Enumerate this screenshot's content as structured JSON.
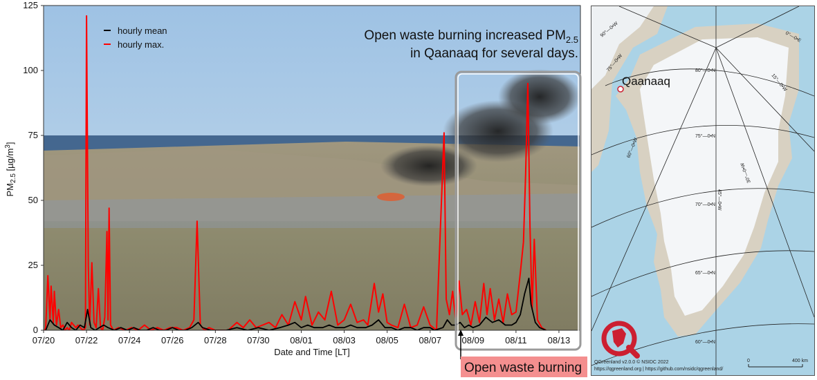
{
  "chart_data": {
    "type": "line",
    "title_line1_prefix": "Open waste burning increased PM",
    "title_line1_sub": "2.5",
    "title_line2": "in Qaanaaq  for several days.",
    "ylabel_prefix": "PM",
    "ylabel_sub": "2.5",
    "ylabel_unit": " [µg/m",
    "ylabel_sup": "3",
    "ylabel_close": "]",
    "xlabel": "Date and Time [LT]",
    "ylim": [
      0,
      125
    ],
    "xlim": [
      "07/20",
      "08/14"
    ],
    "yticks": [
      0,
      25,
      50,
      75,
      100,
      125
    ],
    "xtick_labels": [
      "07/20",
      "07/22",
      "07/24",
      "07/26",
      "07/28",
      "07/30",
      "08/01",
      "08/03",
      "08/05",
      "08/07",
      "08/09",
      "08/11",
      "08/13"
    ],
    "legend_position": "top-left",
    "series": [
      {
        "name": "hourly mean",
        "color": "#000000",
        "points": [
          [
            0.1,
            0
          ],
          [
            0.3,
            4
          ],
          [
            0.5,
            2
          ],
          [
            0.7,
            1
          ],
          [
            0.9,
            0
          ],
          [
            1.1,
            3
          ],
          [
            1.3,
            1
          ],
          [
            1.5,
            0
          ],
          [
            1.7,
            2
          ],
          [
            1.9,
            1
          ],
          [
            2.05,
            8
          ],
          [
            2.2,
            1
          ],
          [
            2.4,
            0
          ],
          [
            2.6,
            1
          ],
          [
            2.8,
            2
          ],
          [
            3.0,
            1
          ],
          [
            3.3,
            0
          ],
          [
            3.6,
            1
          ],
          [
            3.9,
            0
          ],
          [
            4.2,
            1
          ],
          [
            4.5,
            0
          ],
          [
            4.8,
            0
          ],
          [
            5.1,
            1
          ],
          [
            5.4,
            0
          ],
          [
            5.7,
            0
          ],
          [
            6.0,
            1
          ],
          [
            6.3,
            0
          ],
          [
            6.6,
            0
          ],
          [
            6.9,
            1
          ],
          [
            7.2,
            3
          ],
          [
            7.4,
            1
          ],
          [
            7.8,
            0
          ],
          [
            8.5,
            0
          ],
          [
            9.0,
            1
          ],
          [
            9.5,
            0
          ],
          [
            10.0,
            1
          ],
          [
            10.5,
            0
          ],
          [
            11.0,
            1
          ],
          [
            11.4,
            2
          ],
          [
            11.7,
            3
          ],
          [
            12.0,
            1
          ],
          [
            12.3,
            2
          ],
          [
            12.6,
            1
          ],
          [
            13.0,
            1
          ],
          [
            13.3,
            2
          ],
          [
            13.6,
            1
          ],
          [
            14.0,
            1
          ],
          [
            14.3,
            2
          ],
          [
            14.6,
            1
          ],
          [
            15.0,
            1
          ],
          [
            15.3,
            2
          ],
          [
            15.6,
            4
          ],
          [
            15.9,
            1
          ],
          [
            16.2,
            1
          ],
          [
            16.5,
            0
          ],
          [
            16.8,
            1
          ],
          [
            17.1,
            1
          ],
          [
            17.4,
            0
          ],
          [
            17.7,
            1
          ],
          [
            18.0,
            1
          ],
          [
            18.2,
            0
          ],
          [
            18.6,
            1
          ],
          [
            18.8,
            4
          ],
          [
            19.0,
            2
          ],
          [
            19.2,
            2
          ],
          [
            19.4,
            3
          ],
          [
            19.6,
            1
          ],
          [
            19.8,
            2
          ],
          [
            20.0,
            1
          ],
          [
            20.3,
            2
          ],
          [
            20.6,
            5
          ],
          [
            20.9,
            3
          ],
          [
            21.2,
            4
          ],
          [
            21.5,
            2
          ],
          [
            21.8,
            2
          ],
          [
            22.0,
            3
          ],
          [
            22.2,
            6
          ],
          [
            22.4,
            14
          ],
          [
            22.6,
            20
          ],
          [
            22.7,
            10
          ],
          [
            22.9,
            3
          ],
          [
            23.1,
            1
          ],
          [
            23.4,
            0
          ]
        ]
      },
      {
        "name": "hourly max.",
        "color": "#ff0000",
        "points": [
          [
            0.05,
            0
          ],
          [
            0.1,
            1
          ],
          [
            0.2,
            21
          ],
          [
            0.3,
            4
          ],
          [
            0.35,
            17
          ],
          [
            0.45,
            3
          ],
          [
            0.5,
            15
          ],
          [
            0.6,
            2
          ],
          [
            0.7,
            8
          ],
          [
            0.8,
            1
          ],
          [
            0.9,
            2
          ],
          [
            1.0,
            0
          ],
          [
            1.1,
            1
          ],
          [
            1.2,
            0
          ],
          [
            1.3,
            3
          ],
          [
            1.5,
            1
          ],
          [
            1.6,
            2
          ],
          [
            1.7,
            1
          ],
          [
            1.85,
            0
          ],
          [
            1.95,
            1
          ],
          [
            2.0,
            121
          ],
          [
            2.08,
            25
          ],
          [
            2.15,
            2
          ],
          [
            2.25,
            26
          ],
          [
            2.35,
            3
          ],
          [
            2.45,
            1
          ],
          [
            2.55,
            16
          ],
          [
            2.65,
            1
          ],
          [
            2.75,
            0
          ],
          [
            2.85,
            5
          ],
          [
            2.95,
            38
          ],
          [
            3.0,
            4
          ],
          [
            3.05,
            47
          ],
          [
            3.12,
            2
          ],
          [
            3.25,
            0
          ],
          [
            3.5,
            1
          ],
          [
            3.8,
            0
          ],
          [
            4.1,
            1
          ],
          [
            4.4,
            0
          ],
          [
            4.7,
            2
          ],
          [
            5.0,
            0
          ],
          [
            5.3,
            1
          ],
          [
            5.6,
            0
          ],
          [
            5.9,
            1
          ],
          [
            6.2,
            1
          ],
          [
            6.5,
            0
          ],
          [
            6.8,
            1
          ],
          [
            7.0,
            4
          ],
          [
            7.15,
            42
          ],
          [
            7.3,
            2
          ],
          [
            7.5,
            0
          ],
          [
            7.7,
            1
          ],
          [
            8.0,
            0
          ],
          [
            8.6,
            0
          ],
          [
            9.0,
            3
          ],
          [
            9.3,
            1
          ],
          [
            9.6,
            4
          ],
          [
            9.9,
            1
          ],
          [
            10.2,
            2
          ],
          [
            10.5,
            3
          ],
          [
            10.8,
            1
          ],
          [
            11.1,
            6
          ],
          [
            11.4,
            2
          ],
          [
            11.7,
            11
          ],
          [
            12.0,
            4
          ],
          [
            12.2,
            13
          ],
          [
            12.5,
            2
          ],
          [
            12.8,
            7
          ],
          [
            13.1,
            4
          ],
          [
            13.4,
            15
          ],
          [
            13.7,
            2
          ],
          [
            14.0,
            4
          ],
          [
            14.3,
            10
          ],
          [
            14.6,
            3
          ],
          [
            14.9,
            4
          ],
          [
            15.1,
            2
          ],
          [
            15.4,
            18
          ],
          [
            15.6,
            7
          ],
          [
            15.8,
            14
          ],
          [
            16.0,
            3
          ],
          [
            16.2,
            2
          ],
          [
            16.5,
            1
          ],
          [
            16.8,
            10
          ],
          [
            17.1,
            1
          ],
          [
            17.4,
            2
          ],
          [
            17.7,
            9
          ],
          [
            18.0,
            2
          ],
          [
            18.3,
            0
          ],
          [
            18.65,
            76
          ],
          [
            18.75,
            12
          ],
          [
            18.9,
            6
          ],
          [
            19.05,
            15
          ],
          [
            19.2,
            3
          ],
          [
            19.35,
            19
          ],
          [
            19.5,
            6
          ],
          [
            19.7,
            8
          ],
          [
            19.9,
            2
          ],
          [
            20.1,
            11
          ],
          [
            20.3,
            3
          ],
          [
            20.5,
            18
          ],
          [
            20.65,
            6
          ],
          [
            20.8,
            16
          ],
          [
            21.0,
            4
          ],
          [
            21.2,
            12
          ],
          [
            21.4,
            3
          ],
          [
            21.6,
            14
          ],
          [
            21.8,
            6
          ],
          [
            22.0,
            7
          ],
          [
            22.2,
            22
          ],
          [
            22.35,
            34
          ],
          [
            22.45,
            60
          ],
          [
            22.55,
            95
          ],
          [
            22.65,
            40
          ],
          [
            22.75,
            8
          ],
          [
            22.85,
            35
          ],
          [
            23.0,
            4
          ],
          [
            23.2,
            1
          ],
          [
            23.4,
            0
          ]
        ]
      }
    ],
    "annotation": {
      "label": "Open waste burning",
      "start_date": "08/08"
    }
  },
  "map": {
    "place_label": "Qaanaaq",
    "lat_labels": [
      "80°—0•N",
      "75°—0•N",
      "70°—0•N",
      "65°—0•N",
      "60°—0•N"
    ],
    "lon_labels": [
      "60°—0•W",
      "45°—0•W",
      "30°—0•W",
      "15°—0•W",
      "0°—0•E",
      "75°—0•W",
      "90°—0•W"
    ],
    "credit_line1": "QGreenland v2.0.0 © NSIDC 2022",
    "credit_line2": "https://qgreenland.org | https://github.com/nsidc/qgreenland/",
    "scale_start": "0",
    "scale_end": "400 km",
    "colors": {
      "ocean": "#abd3e6",
      "ice": "#f4f6f8",
      "land": "#d8d1c2",
      "marker": "#cc1f31"
    }
  }
}
